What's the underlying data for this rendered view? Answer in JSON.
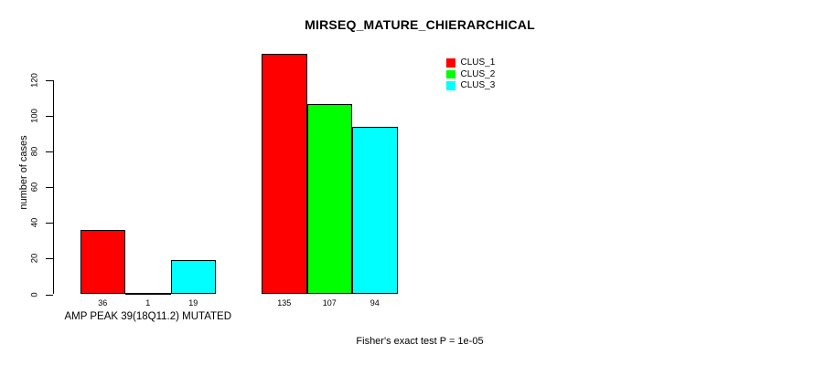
{
  "chart_data": {
    "type": "bar",
    "title": "MIRSEQ_MATURE_CHIERARCHICAL",
    "ylabel": "number of cases",
    "xlabel": "",
    "ylim": [
      0,
      135
    ],
    "yticks": [
      0,
      20,
      40,
      60,
      80,
      100,
      120
    ],
    "grid": false,
    "legend_position": "top-right inside plot",
    "categories": [
      "AMP PEAK 39(18Q11.2) MUTATED",
      ""
    ],
    "series": [
      {
        "name": "CLUS_1",
        "color": "#ff0000",
        "values": [
          36,
          135
        ]
      },
      {
        "name": "CLUS_2",
        "color": "#00ff00",
        "values": [
          1,
          107
        ]
      },
      {
        "name": "CLUS_3",
        "color": "#00ffff",
        "values": [
          19,
          94
        ]
      }
    ],
    "footnote": "Fisher's exact test P = 1e-05",
    "bar_border_color": "#000000",
    "background": "#ffffff",
    "text_color": "#000000"
  }
}
